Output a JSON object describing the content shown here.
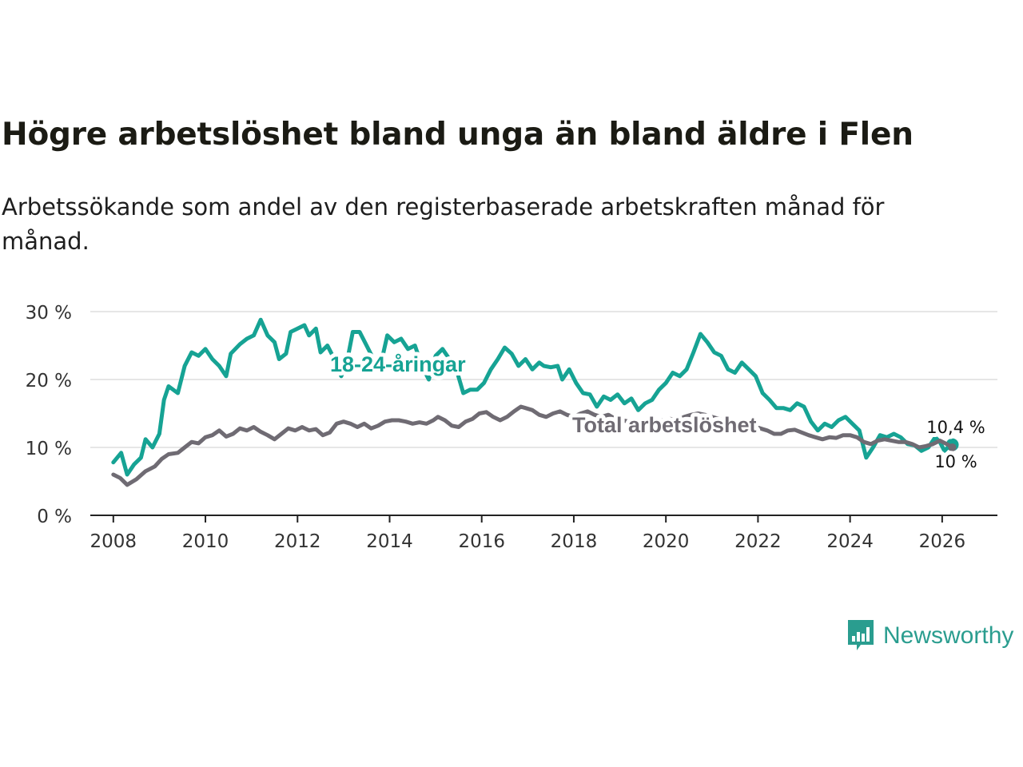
{
  "title": "Högre arbetslöshet bland unga än bland äldre i Flen",
  "subtitle": "Arbetssökande som andel av den registerbaserade arbetskraften månad för månad.",
  "brand": {
    "name": "Newsworthy",
    "color": "#2a9d8f"
  },
  "colors": {
    "youth": "#16a394",
    "total": "#6f6b73",
    "grid": "#dddddd",
    "axis": "#222222"
  },
  "chart_data": {
    "type": "line",
    "title": "Högre arbetslöshet bland unga än bland äldre i Flen",
    "xlabel": "",
    "ylabel": "",
    "xlim": [
      2007.5,
      2027.2
    ],
    "ylim": [
      0,
      30
    ],
    "x_ticks": [
      2008,
      2010,
      2012,
      2014,
      2016,
      2018,
      2020,
      2022,
      2024,
      2026
    ],
    "x_tick_labels": [
      "2008",
      "2010",
      "2012",
      "2014",
      "2016",
      "2018",
      "2020",
      "2022",
      "2024",
      "2026"
    ],
    "y_ticks": [
      0,
      10,
      20,
      30
    ],
    "y_tick_labels": [
      "0 %",
      "10 %",
      "20 %",
      "30 %"
    ],
    "grid": true,
    "series": [
      {
        "name": "18-24-åringar",
        "color": "#16a394",
        "end_label": "10,4 %",
        "points": [
          [
            2008.0,
            7.8
          ],
          [
            2008.17,
            9.2
          ],
          [
            2008.3,
            6.0
          ],
          [
            2008.45,
            7.5
          ],
          [
            2008.6,
            8.5
          ],
          [
            2008.7,
            11.2
          ],
          [
            2008.85,
            10.0
          ],
          [
            2009.0,
            12.0
          ],
          [
            2009.1,
            17.0
          ],
          [
            2009.2,
            19.0
          ],
          [
            2009.4,
            18.0
          ],
          [
            2009.55,
            22.0
          ],
          [
            2009.7,
            24.0
          ],
          [
            2009.85,
            23.5
          ],
          [
            2010.0,
            24.5
          ],
          [
            2010.15,
            23.0
          ],
          [
            2010.3,
            22.0
          ],
          [
            2010.45,
            20.5
          ],
          [
            2010.55,
            23.8
          ],
          [
            2010.75,
            25.2
          ],
          [
            2010.9,
            26.0
          ],
          [
            2011.05,
            26.5
          ],
          [
            2011.2,
            28.8
          ],
          [
            2011.35,
            26.5
          ],
          [
            2011.5,
            25.5
          ],
          [
            2011.6,
            23.0
          ],
          [
            2011.75,
            23.8
          ],
          [
            2011.85,
            27.0
          ],
          [
            2012.0,
            27.5
          ],
          [
            2012.15,
            28.0
          ],
          [
            2012.25,
            26.5
          ],
          [
            2012.4,
            27.5
          ],
          [
            2012.5,
            24.0
          ],
          [
            2012.65,
            25.0
          ],
          [
            2012.8,
            23.0
          ],
          [
            2012.95,
            20.5
          ],
          [
            2013.1,
            23.5
          ],
          [
            2013.2,
            27.0
          ],
          [
            2013.35,
            27.0
          ],
          [
            2013.5,
            25.0
          ],
          [
            2013.65,
            23.0
          ],
          [
            2013.8,
            22.0
          ],
          [
            2013.95,
            26.5
          ],
          [
            2014.1,
            25.5
          ],
          [
            2014.25,
            26.0
          ],
          [
            2014.4,
            24.5
          ],
          [
            2014.55,
            25.0
          ],
          [
            2014.7,
            22.0
          ],
          [
            2014.85,
            20.0
          ],
          [
            2015.0,
            23.5
          ],
          [
            2015.15,
            24.5
          ],
          [
            2015.3,
            23.0
          ],
          [
            2015.45,
            21.5
          ],
          [
            2015.6,
            18.0
          ],
          [
            2015.75,
            18.5
          ],
          [
            2015.9,
            18.5
          ],
          [
            2016.05,
            19.5
          ],
          [
            2016.2,
            21.5
          ],
          [
            2016.35,
            23.0
          ],
          [
            2016.5,
            24.7
          ],
          [
            2016.65,
            23.8
          ],
          [
            2016.8,
            22.0
          ],
          [
            2016.95,
            23.0
          ],
          [
            2017.1,
            21.5
          ],
          [
            2017.25,
            22.5
          ],
          [
            2017.35,
            22.0
          ],
          [
            2017.5,
            21.8
          ],
          [
            2017.65,
            22.0
          ],
          [
            2017.75,
            20.0
          ],
          [
            2017.9,
            21.5
          ],
          [
            2018.05,
            19.5
          ],
          [
            2018.2,
            18.0
          ],
          [
            2018.35,
            17.8
          ],
          [
            2018.5,
            16.0
          ],
          [
            2018.65,
            17.5
          ],
          [
            2018.8,
            17.0
          ],
          [
            2018.95,
            17.8
          ],
          [
            2019.1,
            16.5
          ],
          [
            2019.25,
            17.2
          ],
          [
            2019.4,
            15.5
          ],
          [
            2019.55,
            16.5
          ],
          [
            2019.7,
            17.0
          ],
          [
            2019.85,
            18.5
          ],
          [
            2020.0,
            19.5
          ],
          [
            2020.15,
            21.0
          ],
          [
            2020.3,
            20.5
          ],
          [
            2020.45,
            21.5
          ],
          [
            2020.6,
            24.0
          ],
          [
            2020.75,
            26.7
          ],
          [
            2020.9,
            25.5
          ],
          [
            2021.05,
            24.0
          ],
          [
            2021.2,
            23.5
          ],
          [
            2021.35,
            21.5
          ],
          [
            2021.5,
            21.0
          ],
          [
            2021.65,
            22.5
          ],
          [
            2021.8,
            21.5
          ],
          [
            2021.95,
            20.5
          ],
          [
            2022.1,
            18.0
          ],
          [
            2022.25,
            17.0
          ],
          [
            2022.4,
            15.8
          ],
          [
            2022.55,
            15.8
          ],
          [
            2022.7,
            15.5
          ],
          [
            2022.85,
            16.5
          ],
          [
            2023.0,
            16.0
          ],
          [
            2023.15,
            13.8
          ],
          [
            2023.3,
            12.5
          ],
          [
            2023.45,
            13.5
          ],
          [
            2023.6,
            13.0
          ],
          [
            2023.75,
            14.0
          ],
          [
            2023.9,
            14.5
          ],
          [
            2024.05,
            13.5
          ],
          [
            2024.2,
            12.5
          ],
          [
            2024.35,
            8.5
          ],
          [
            2024.5,
            10.0
          ],
          [
            2024.65,
            11.8
          ],
          [
            2024.8,
            11.5
          ],
          [
            2024.95,
            12.0
          ],
          [
            2025.1,
            11.5
          ],
          [
            2025.25,
            10.5
          ],
          [
            2025.4,
            10.3
          ],
          [
            2025.55,
            9.5
          ],
          [
            2025.7,
            10.0
          ],
          [
            2025.85,
            11.5
          ],
          [
            2025.95,
            10.8
          ],
          [
            2026.05,
            9.5
          ],
          [
            2026.15,
            10.2
          ],
          [
            2026.22,
            10.4
          ]
        ]
      },
      {
        "name": "Total arbetslöshet",
        "color": "#6f6b73",
        "end_label": "10 %",
        "points": [
          [
            2008.0,
            6.0
          ],
          [
            2008.15,
            5.5
          ],
          [
            2008.3,
            4.5
          ],
          [
            2008.5,
            5.3
          ],
          [
            2008.7,
            6.5
          ],
          [
            2008.9,
            7.2
          ],
          [
            2009.05,
            8.3
          ],
          [
            2009.2,
            9.0
          ],
          [
            2009.4,
            9.2
          ],
          [
            2009.55,
            10.0
          ],
          [
            2009.7,
            10.8
          ],
          [
            2009.85,
            10.6
          ],
          [
            2010.0,
            11.5
          ],
          [
            2010.15,
            11.8
          ],
          [
            2010.3,
            12.5
          ],
          [
            2010.45,
            11.6
          ],
          [
            2010.6,
            12.0
          ],
          [
            2010.75,
            12.8
          ],
          [
            2010.9,
            12.5
          ],
          [
            2011.05,
            13.0
          ],
          [
            2011.2,
            12.3
          ],
          [
            2011.35,
            11.8
          ],
          [
            2011.5,
            11.2
          ],
          [
            2011.65,
            12.0
          ],
          [
            2011.8,
            12.8
          ],
          [
            2011.95,
            12.5
          ],
          [
            2012.1,
            13.0
          ],
          [
            2012.25,
            12.5
          ],
          [
            2012.4,
            12.7
          ],
          [
            2012.55,
            11.8
          ],
          [
            2012.7,
            12.2
          ],
          [
            2012.85,
            13.5
          ],
          [
            2013.0,
            13.8
          ],
          [
            2013.15,
            13.5
          ],
          [
            2013.3,
            13.0
          ],
          [
            2013.45,
            13.5
          ],
          [
            2013.6,
            12.8
          ],
          [
            2013.75,
            13.2
          ],
          [
            2013.9,
            13.8
          ],
          [
            2014.05,
            14.0
          ],
          [
            2014.2,
            14.0
          ],
          [
            2014.35,
            13.8
          ],
          [
            2014.5,
            13.5
          ],
          [
            2014.65,
            13.7
          ],
          [
            2014.8,
            13.5
          ],
          [
            2014.95,
            14.0
          ],
          [
            2015.05,
            14.5
          ],
          [
            2015.2,
            14.0
          ],
          [
            2015.35,
            13.2
          ],
          [
            2015.5,
            13.0
          ],
          [
            2015.65,
            13.8
          ],
          [
            2015.8,
            14.2
          ],
          [
            2015.95,
            15.0
          ],
          [
            2016.1,
            15.2
          ],
          [
            2016.25,
            14.5
          ],
          [
            2016.4,
            14.0
          ],
          [
            2016.55,
            14.5
          ],
          [
            2016.7,
            15.3
          ],
          [
            2016.85,
            16.0
          ],
          [
            2016.95,
            15.8
          ],
          [
            2017.1,
            15.5
          ],
          [
            2017.25,
            14.8
          ],
          [
            2017.4,
            14.5
          ],
          [
            2017.55,
            15.0
          ],
          [
            2017.7,
            15.3
          ],
          [
            2017.85,
            14.8
          ],
          [
            2018.0,
            14.5
          ],
          [
            2018.15,
            15.0
          ],
          [
            2018.3,
            15.3
          ],
          [
            2018.45,
            14.8
          ],
          [
            2018.6,
            14.5
          ],
          [
            2018.75,
            14.8
          ],
          [
            2018.9,
            14.2
          ],
          [
            2019.05,
            14.0
          ],
          [
            2019.2,
            13.8
          ],
          [
            2019.35,
            13.5
          ],
          [
            2019.5,
            13.6
          ],
          [
            2019.65,
            13.3
          ],
          [
            2019.8,
            13.8
          ],
          [
            2019.95,
            14.0
          ],
          [
            2020.1,
            14.2
          ],
          [
            2020.25,
            14.0
          ],
          [
            2020.4,
            14.5
          ],
          [
            2020.55,
            14.8
          ],
          [
            2020.7,
            15.0
          ],
          [
            2020.85,
            14.8
          ],
          [
            2021.0,
            14.5
          ],
          [
            2021.15,
            14.2
          ],
          [
            2021.3,
            14.0
          ],
          [
            2021.45,
            13.8
          ],
          [
            2021.6,
            13.5
          ],
          [
            2021.75,
            13.5
          ],
          [
            2021.9,
            13.2
          ],
          [
            2022.05,
            12.8
          ],
          [
            2022.2,
            12.5
          ],
          [
            2022.35,
            12.0
          ],
          [
            2022.5,
            12.0
          ],
          [
            2022.65,
            12.5
          ],
          [
            2022.8,
            12.6
          ],
          [
            2022.95,
            12.2
          ],
          [
            2023.1,
            11.8
          ],
          [
            2023.25,
            11.5
          ],
          [
            2023.4,
            11.2
          ],
          [
            2023.55,
            11.5
          ],
          [
            2023.7,
            11.4
          ],
          [
            2023.85,
            11.8
          ],
          [
            2024.0,
            11.8
          ],
          [
            2024.15,
            11.5
          ],
          [
            2024.3,
            10.8
          ],
          [
            2024.45,
            10.5
          ],
          [
            2024.6,
            11.0
          ],
          [
            2024.75,
            11.2
          ],
          [
            2024.9,
            11.0
          ],
          [
            2025.05,
            10.8
          ],
          [
            2025.2,
            10.8
          ],
          [
            2025.35,
            10.5
          ],
          [
            2025.5,
            10.0
          ],
          [
            2025.65,
            10.2
          ],
          [
            2025.8,
            10.5
          ],
          [
            2025.95,
            11.0
          ],
          [
            2026.1,
            10.5
          ],
          [
            2026.22,
            10.0
          ]
        ]
      }
    ]
  }
}
